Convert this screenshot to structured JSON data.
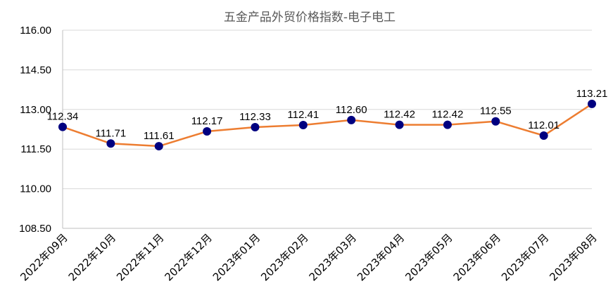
{
  "chart_data": {
    "type": "line",
    "title": "五金产品外贸价格指数-电子电工",
    "xlabel": "",
    "ylabel": "",
    "categories": [
      "2022年09月",
      "2022年10月",
      "2022年11月",
      "2022年12月",
      "2023年01月",
      "2023年02月",
      "2023年03月",
      "2023年04月",
      "2023年05月",
      "2023年06月",
      "2023年07月",
      "2023年08月"
    ],
    "series": [
      {
        "values": [
          112.34,
          111.71,
          111.61,
          112.17,
          112.33,
          112.41,
          112.6,
          112.42,
          112.42,
          112.55,
          112.01,
          113.21
        ],
        "line_color": "#ed7d31",
        "marker_color": "#000080"
      }
    ],
    "data_labels": [
      "112.34",
      "111.71",
      "111.61",
      "112.17",
      "112.33",
      "112.41",
      "112.60",
      "112.42",
      "112.42",
      "112.55",
      "112.01",
      "113.21"
    ],
    "ylim": [
      108.5,
      116.0
    ],
    "yticks": [
      108.5,
      110.0,
      111.5,
      113.0,
      114.5,
      116.0
    ],
    "ytick_labels": [
      "108.50",
      "110.00",
      "111.50",
      "113.00",
      "114.50",
      "116.00"
    ],
    "grid": true,
    "gridline_color": "#d9d9d9",
    "legend": "none"
  }
}
